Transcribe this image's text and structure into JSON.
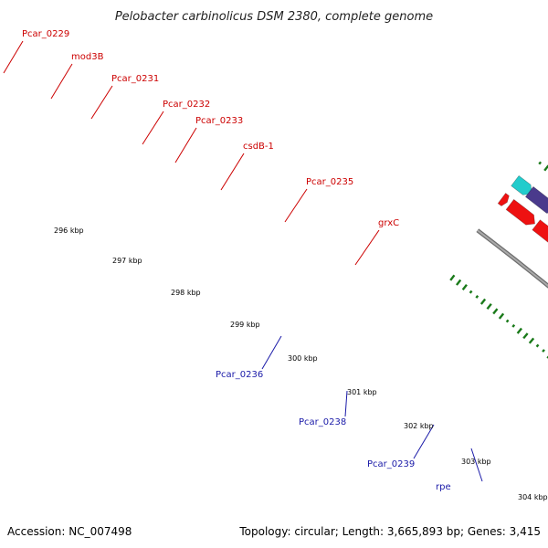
{
  "title": "Pelobacter carbinolicus DSM 2380, complete genome",
  "footer": {
    "accession": "Accession: NC_007498",
    "summary": "Topology: circular; Length: 3,665,893 bp; Genes: 3,415"
  },
  "colors": {
    "backbone": "#8a8a8a",
    "gc_marks": "#1a7a1a",
    "label_forward": "#cc0000",
    "label_reverse": "#1a1aa8"
  },
  "tick_labels": [
    "296 kbp",
    "297 kbp",
    "298 kbp",
    "299 kbp",
    "300 kbp",
    "301 kbp",
    "302 kbp",
    "303 kbp",
    "304 kbp"
  ],
  "gene_labels_forward": [
    "Pcar_0229",
    "mod3B",
    "Pcar_0231",
    "Pcar_0232",
    "Pcar_0233",
    "csdB-1",
    "Pcar_0235",
    "grxC"
  ],
  "gene_labels_reverse": [
    "Pcar_0236",
    "Pcar_0238",
    "Pcar_0239",
    "rpe"
  ]
}
